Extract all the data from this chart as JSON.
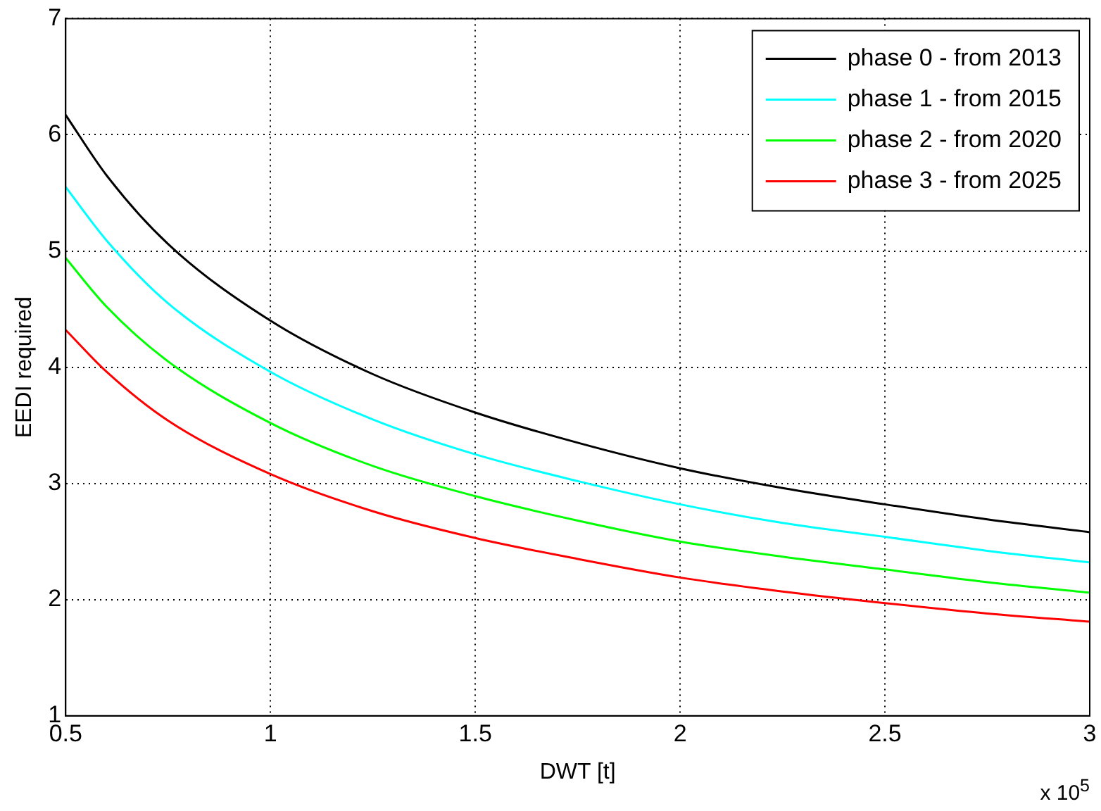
{
  "chart_data": {
    "type": "line",
    "xlabel": "DWT [t]",
    "ylabel": "EEDI required",
    "annotations": [
      "x 10$^{5}$"
    ],
    "x": [
      0.5,
      0.6,
      0.75,
      1,
      1.25,
      1.5,
      1.75,
      2,
      2.25,
      2.5,
      2.75,
      3
    ],
    "series": [
      {
        "name": "phase 0 - from 2013",
        "color": "#000000",
        "values": [
          6.17,
          5.65,
          5.06,
          4.4,
          3.94,
          3.61,
          3.35,
          3.13,
          2.96,
          2.82,
          2.69,
          2.58
        ]
      },
      {
        "name": "phase 1 - from 2015",
        "color": "#00ffff",
        "values": [
          5.55,
          5.09,
          4.55,
          3.96,
          3.55,
          3.25,
          3.02,
          2.82,
          2.66,
          2.54,
          2.42,
          2.32
        ]
      },
      {
        "name": "phase 2 - from 2020",
        "color": "#00ff00",
        "values": [
          4.94,
          4.52,
          4.05,
          3.52,
          3.15,
          2.89,
          2.68,
          2.5,
          2.37,
          2.26,
          2.15,
          2.06
        ]
      },
      {
        "name": "phase 3 - from 2025",
        "color": "#ff0000",
        "values": [
          4.32,
          3.96,
          3.54,
          3.08,
          2.76,
          2.53,
          2.35,
          2.19,
          2.07,
          1.97,
          1.88,
          1.81
        ]
      }
    ],
    "xlim": [
      0.5,
      3
    ],
    "xticks": [
      0.5,
      1,
      1.5,
      2,
      2.5,
      3
    ],
    "ylim": [
      1,
      7
    ],
    "yticks": [
      1,
      2,
      3,
      4,
      5,
      6,
      7
    ],
    "grid": true,
    "legend": "top right",
    "line_style": "solid",
    "marker": "none"
  }
}
